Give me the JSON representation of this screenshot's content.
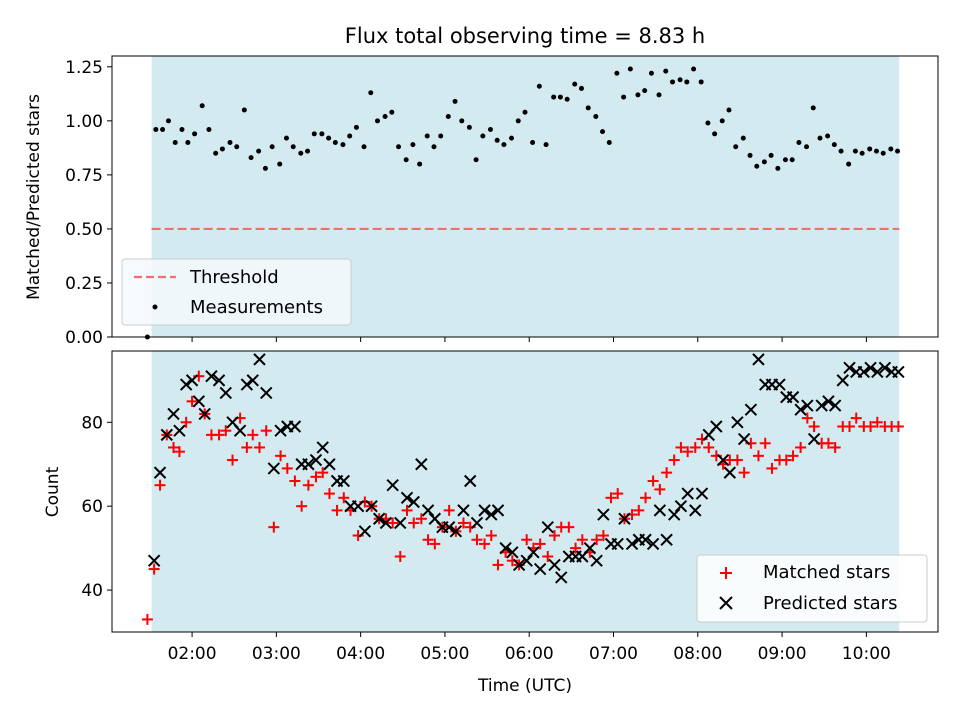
{
  "chart_data": [
    {
      "type": "scatter",
      "title": "Flux total observing time = 8.83 h",
      "xlabel": "",
      "ylabel": "Matched/Predicted stars",
      "xlim": [
        1.05,
        10.85
      ],
      "ylim": [
        0.0,
        1.3
      ],
      "yticks": [
        "0.00",
        "0.25",
        "0.50",
        "0.75",
        "1.00",
        "1.25"
      ],
      "shaded_span": [
        1.52,
        10.39
      ],
      "shade_color": "#d3eaf1",
      "legend_position": "lower-left",
      "series": [
        {
          "name": "Threshold",
          "style": "dashed-line",
          "color": "#f07070",
          "x": [
            1.52,
            10.39
          ],
          "y": [
            0.5,
            0.5
          ]
        },
        {
          "name": "Measurements",
          "style": "dot",
          "color": "#000000",
          "x": [
            1.47,
            1.57,
            1.65,
            1.72,
            1.8,
            1.88,
            1.95,
            2.03,
            2.12,
            2.2,
            2.28,
            2.36,
            2.45,
            2.53,
            2.62,
            2.7,
            2.79,
            2.87,
            2.95,
            3.04,
            3.12,
            3.2,
            3.29,
            3.37,
            3.45,
            3.54,
            3.62,
            3.7,
            3.79,
            3.87,
            3.95,
            4.04,
            4.12,
            4.2,
            4.29,
            4.37,
            4.45,
            4.54,
            4.62,
            4.7,
            4.79,
            4.87,
            4.95,
            5.04,
            5.12,
            5.2,
            5.29,
            5.37,
            5.45,
            5.54,
            5.62,
            5.7,
            5.79,
            5.87,
            5.95,
            6.04,
            6.12,
            6.2,
            6.29,
            6.37,
            6.45,
            6.54,
            6.62,
            6.7,
            6.79,
            6.87,
            6.95,
            7.04,
            7.12,
            7.2,
            7.29,
            7.37,
            7.45,
            7.54,
            7.62,
            7.7,
            7.79,
            7.87,
            7.95,
            8.04,
            8.12,
            8.2,
            8.29,
            8.37,
            8.45,
            8.54,
            8.62,
            8.7,
            8.79,
            8.87,
            8.95,
            9.04,
            9.12,
            9.2,
            9.29,
            9.37,
            9.45,
            9.54,
            9.62,
            9.7,
            9.79,
            9.87,
            9.95,
            10.04,
            10.12,
            10.2,
            10.29,
            10.37
          ],
          "y": [
            0.0,
            0.96,
            0.96,
            1.0,
            0.9,
            0.96,
            0.9,
            0.94,
            1.07,
            0.96,
            0.85,
            0.87,
            0.9,
            0.88,
            1.05,
            0.83,
            0.86,
            0.78,
            0.88,
            0.8,
            0.92,
            0.88,
            0.85,
            0.86,
            0.94,
            0.94,
            0.92,
            0.9,
            0.89,
            0.93,
            0.97,
            0.88,
            1.13,
            1.0,
            1.02,
            1.04,
            0.88,
            0.82,
            0.89,
            0.8,
            0.93,
            0.88,
            0.93,
            1.02,
            1.09,
            1.0,
            0.97,
            0.82,
            0.93,
            0.96,
            0.91,
            0.89,
            0.92,
            1.0,
            1.04,
            0.9,
            1.16,
            0.89,
            1.11,
            1.11,
            1.1,
            1.17,
            1.15,
            1.06,
            1.02,
            0.95,
            0.9,
            1.22,
            1.11,
            1.24,
            1.12,
            1.14,
            1.22,
            1.12,
            1.23,
            1.18,
            1.19,
            1.18,
            1.24,
            1.18,
            0.99,
            0.94,
            1.0,
            1.05,
            0.88,
            0.92,
            0.84,
            0.79,
            0.81,
            0.84,
            0.78,
            0.82,
            0.82,
            0.9,
            0.88,
            1.06,
            0.92,
            0.93,
            0.89,
            0.86,
            0.8,
            0.86,
            0.85,
            0.87,
            0.86,
            0.85,
            0.87,
            0.86
          ]
        }
      ]
    },
    {
      "type": "scatter",
      "title": "",
      "xlabel": "Time (UTC)",
      "ylabel": "Count",
      "xlim": [
        1.05,
        10.85
      ],
      "ylim": [
        30,
        97
      ],
      "yticks": [
        "40",
        "60",
        "80"
      ],
      "xticks": [
        "02:00",
        "03:00",
        "04:00",
        "05:00",
        "06:00",
        "07:00",
        "08:00",
        "09:00",
        "10:00"
      ],
      "shaded_span": [
        1.52,
        10.39
      ],
      "shade_color": "#d3eaf1",
      "legend_position": "lower-right",
      "series": [
        {
          "name": "Matched stars",
          "style": "plus",
          "color": "#ff0000",
          "x": [
            1.47,
            1.55,
            1.62,
            1.7,
            1.78,
            1.85,
            1.93,
            2.0,
            2.08,
            2.15,
            2.23,
            2.32,
            2.4,
            2.48,
            2.57,
            2.65,
            2.72,
            2.8,
            2.88,
            2.97,
            3.05,
            3.13,
            3.22,
            3.3,
            3.38,
            3.47,
            3.55,
            3.63,
            3.72,
            3.8,
            3.88,
            3.97,
            4.05,
            4.13,
            4.22,
            4.3,
            4.38,
            4.47,
            4.55,
            4.63,
            4.72,
            4.8,
            4.88,
            4.97,
            5.05,
            5.13,
            5.22,
            5.3,
            5.38,
            5.47,
            5.55,
            5.63,
            5.72,
            5.8,
            5.88,
            5.97,
            6.05,
            6.13,
            6.22,
            6.3,
            6.38,
            6.47,
            6.55,
            6.63,
            6.72,
            6.8,
            6.88,
            6.97,
            7.05,
            7.13,
            7.22,
            7.3,
            7.38,
            7.47,
            7.55,
            7.63,
            7.72,
            7.8,
            7.88,
            7.97,
            8.05,
            8.13,
            8.22,
            8.3,
            8.38,
            8.47,
            8.55,
            8.63,
            8.72,
            8.8,
            8.88,
            8.97,
            9.05,
            9.13,
            9.22,
            9.3,
            9.38,
            9.47,
            9.55,
            9.63,
            9.72,
            9.8,
            9.88,
            9.97,
            10.05,
            10.13,
            10.22,
            10.3,
            10.38
          ],
          "y": [
            33,
            45,
            65,
            77,
            74,
            73,
            80,
            85,
            91,
            82,
            77,
            77,
            78,
            71,
            81,
            74,
            77,
            74,
            78,
            55,
            72,
            69,
            66,
            60,
            65,
            67,
            68,
            63,
            59,
            62,
            59,
            53,
            61,
            60,
            57,
            57,
            56,
            48,
            59,
            56,
            57,
            52,
            51,
            55,
            59,
            54,
            56,
            55,
            52,
            51,
            53,
            46,
            49,
            47,
            46,
            52,
            50,
            51,
            48,
            53,
            55,
            55,
            50,
            52,
            49,
            52,
            53,
            62,
            63,
            57,
            58,
            59,
            62,
            66,
            64,
            68,
            71,
            74,
            73,
            74,
            76,
            74,
            72,
            70,
            71,
            71,
            68,
            75,
            72,
            75,
            69,
            71,
            71,
            72,
            74,
            81,
            79,
            75,
            75,
            74,
            79,
            79,
            81,
            79,
            79,
            80,
            79,
            79,
            79
          ]
        },
        {
          "name": "Predicted stars",
          "style": "x",
          "color": "#000000",
          "x": [
            1.55,
            1.62,
            1.7,
            1.78,
            1.85,
            1.93,
            2.0,
            2.08,
            2.15,
            2.23,
            2.32,
            2.4,
            2.48,
            2.57,
            2.65,
            2.72,
            2.8,
            2.88,
            2.97,
            3.05,
            3.13,
            3.22,
            3.3,
            3.38,
            3.47,
            3.55,
            3.63,
            3.72,
            3.8,
            3.88,
            3.97,
            4.05,
            4.13,
            4.22,
            4.3,
            4.38,
            4.47,
            4.55,
            4.63,
            4.72,
            4.8,
            4.88,
            4.97,
            5.05,
            5.13,
            5.22,
            5.3,
            5.38,
            5.47,
            5.55,
            5.63,
            5.72,
            5.8,
            5.88,
            5.97,
            6.05,
            6.13,
            6.22,
            6.3,
            6.38,
            6.47,
            6.55,
            6.63,
            6.72,
            6.8,
            6.88,
            6.97,
            7.05,
            7.13,
            7.22,
            7.3,
            7.38,
            7.47,
            7.55,
            7.63,
            7.72,
            7.8,
            7.88,
            7.97,
            8.05,
            8.13,
            8.22,
            8.3,
            8.38,
            8.47,
            8.55,
            8.63,
            8.72,
            8.8,
            8.88,
            8.97,
            9.05,
            9.13,
            9.22,
            9.3,
            9.38,
            9.47,
            9.55,
            9.63,
            9.72,
            9.8,
            9.88,
            9.97,
            10.05,
            10.13,
            10.22,
            10.3,
            10.38
          ],
          "y": [
            47,
            68,
            77,
            82,
            78,
            89,
            90,
            85,
            82,
            91,
            90,
            87,
            80,
            78,
            89,
            90,
            95,
            87,
            69,
            78,
            79,
            79,
            70,
            70,
            71,
            74,
            70,
            66,
            66,
            60,
            60,
            54,
            60,
            57,
            56,
            65,
            56,
            62,
            61,
            70,
            59,
            57,
            55,
            55,
            54,
            59,
            66,
            56,
            59,
            58,
            59,
            50,
            49,
            46,
            47,
            49,
            45,
            55,
            46,
            43,
            48,
            48,
            48,
            50,
            47,
            58,
            51,
            51,
            57,
            51,
            52,
            52,
            51,
            59,
            52,
            58,
            60,
            63,
            59,
            63,
            77,
            79,
            71,
            68,
            80,
            76,
            83,
            95,
            89,
            89,
            89,
            86,
            86,
            83,
            84,
            76,
            84,
            85,
            84,
            90,
            93,
            92,
            92,
            93,
            92,
            93,
            92,
            92
          ]
        }
      ]
    }
  ]
}
